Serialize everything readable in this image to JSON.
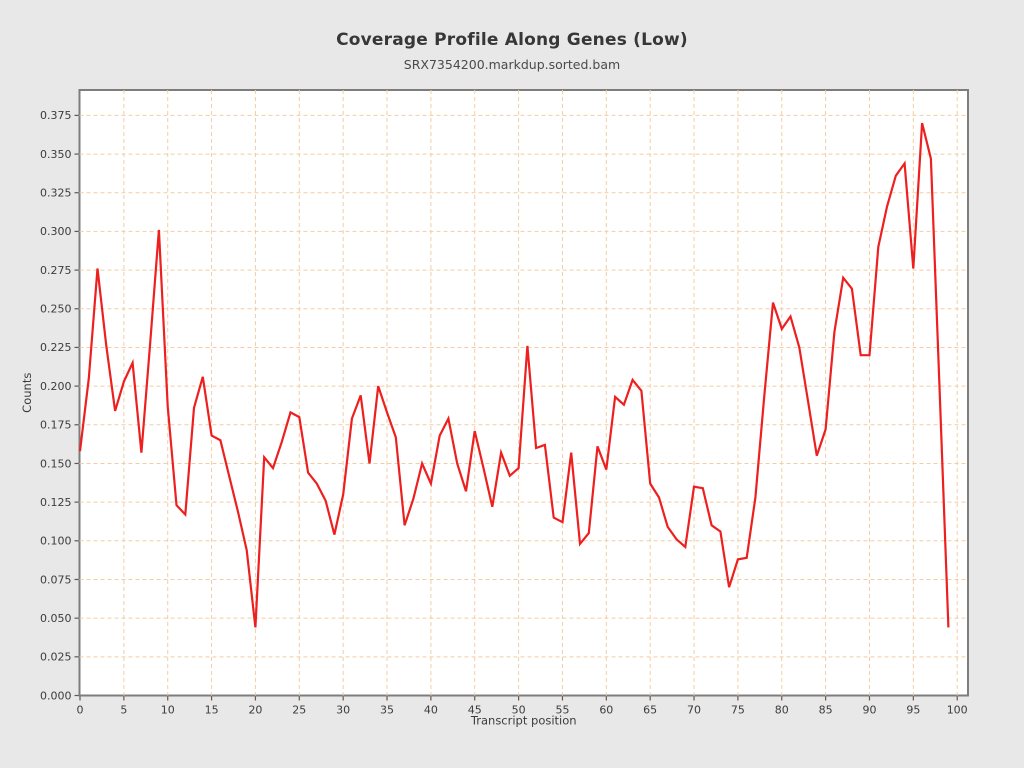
{
  "page": {
    "background_color": "#e8e8e8",
    "plot_background_color": "#ffffff",
    "frame_color": "#7d7d7d",
    "grid_color": "#f3cda4",
    "tick_color": "#5a5a5a",
    "text_color": "#3c3c3c"
  },
  "header": {
    "title": "Coverage Profile Along Genes (Low)",
    "subtitle": "SRX7354200.markdup.sorted.bam"
  },
  "chart_data": {
    "type": "line",
    "title": "Coverage Profile Along Genes (Low)",
    "subtitle": "SRX7354200.markdup.sorted.bam",
    "xlabel": "Transcript position",
    "ylabel": "Counts",
    "series_name": "Coverage",
    "series_color": "#ee1f1f",
    "line_width": 2.2,
    "grid": "both-dashed",
    "legend_position": "none",
    "xlim": [
      0,
      101
    ],
    "ylim": [
      0,
      0.39
    ],
    "x_ticks": [
      0,
      5,
      10,
      15,
      20,
      25,
      30,
      35,
      40,
      45,
      50,
      55,
      60,
      65,
      70,
      75,
      80,
      85,
      90,
      95,
      100
    ],
    "y_ticks": [
      0.0,
      0.025,
      0.05,
      0.075,
      0.1,
      0.125,
      0.15,
      0.175,
      0.2,
      0.225,
      0.25,
      0.275,
      0.3,
      0.325,
      0.35,
      0.375
    ],
    "y_tick_decimals": 3,
    "x": [
      0,
      1,
      2,
      3,
      4,
      5,
      6,
      7,
      8,
      9,
      10,
      11,
      12,
      13,
      14,
      15,
      16,
      17,
      18,
      19,
      20,
      21,
      22,
      23,
      24,
      25,
      26,
      27,
      28,
      29,
      30,
      31,
      32,
      33,
      34,
      35,
      36,
      37,
      38,
      39,
      40,
      41,
      42,
      43,
      44,
      45,
      46,
      47,
      48,
      49,
      50,
      51,
      52,
      53,
      54,
      55,
      56,
      57,
      58,
      59,
      60,
      61,
      62,
      63,
      64,
      65,
      66,
      67,
      68,
      69,
      70,
      71,
      72,
      73,
      74,
      75,
      76,
      77,
      78,
      79,
      80,
      81,
      82,
      83,
      84,
      85,
      86,
      87,
      88,
      89,
      90,
      91,
      92,
      93,
      94,
      95,
      96,
      97,
      98,
      99
    ],
    "values": [
      0.158,
      0.205,
      0.276,
      0.226,
      0.184,
      0.203,
      0.215,
      0.157,
      0.228,
      0.301,
      0.187,
      0.123,
      0.117,
      0.186,
      0.206,
      0.168,
      0.165,
      0.142,
      0.119,
      0.094,
      0.044,
      0.154,
      0.147,
      0.164,
      0.183,
      0.18,
      0.144,
      0.137,
      0.126,
      0.104,
      0.13,
      0.179,
      0.194,
      0.15,
      0.2,
      0.183,
      0.167,
      0.11,
      0.127,
      0.15,
      0.137,
      0.168,
      0.179,
      0.15,
      0.132,
      0.171,
      0.147,
      0.122,
      0.157,
      0.142,
      0.147,
      0.226,
      0.16,
      0.162,
      0.115,
      0.112,
      0.157,
      0.098,
      0.105,
      0.161,
      0.146,
      0.193,
      0.188,
      0.204,
      0.197,
      0.137,
      0.128,
      0.109,
      0.101,
      0.096,
      0.135,
      0.134,
      0.11,
      0.106,
      0.07,
      0.088,
      0.089,
      0.128,
      0.193,
      0.254,
      0.237,
      0.245,
      0.225,
      0.19,
      0.155,
      0.172,
      0.235,
      0.27,
      0.263,
      0.22,
      0.22,
      0.29,
      0.316,
      0.336,
      0.344,
      0.276,
      0.37,
      0.347,
      0.196,
      0.044
    ]
  }
}
